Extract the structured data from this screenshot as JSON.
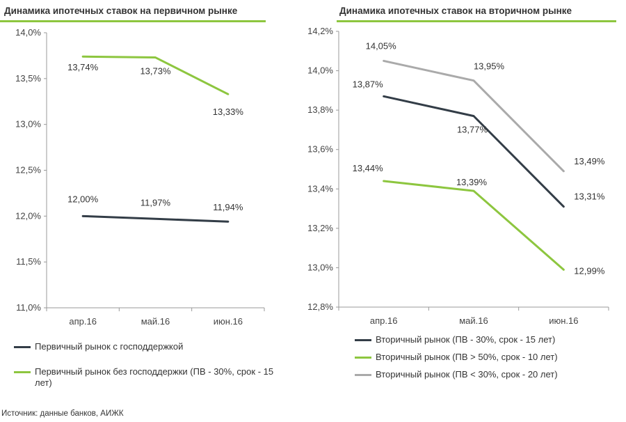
{
  "left_title": "Динамика ипотечных ставок на первичном рынке",
  "right_title": "Динамика ипотечных ставок на вторичном рынке",
  "source": "Источник: данные банков, АИЖК",
  "colors": {
    "accent": "#8dc63f",
    "dark": "#333d47",
    "green": "#8dc63f",
    "gray": "#aaaaaa"
  },
  "chart_data": [
    {
      "type": "line",
      "title": "Динамика ипотечных ставок на первичном рынке",
      "categories": [
        "апр.16",
        "май.16",
        "июн.16"
      ],
      "ylim": [
        11.0,
        14.0
      ],
      "yticks": [
        "11,0%",
        "11,5%",
        "12,0%",
        "12,5%",
        "13,0%",
        "13,5%",
        "14,0%"
      ],
      "grid": false,
      "legend_position": "bottom",
      "series": [
        {
          "name": "Первичный рынок с господдержкой",
          "color": "#333d47",
          "values": [
            12.0,
            11.97,
            11.94
          ],
          "labels": [
            "12,00%",
            "11,97%",
            "11,94%"
          ]
        },
        {
          "name": "Первичный рынок без господдержки (ПВ - 30%, срок - 15 лет)",
          "color": "#8dc63f",
          "values": [
            13.74,
            13.73,
            13.33
          ],
          "labels": [
            "13,74%",
            "13,73%",
            "13,33%"
          ]
        }
      ]
    },
    {
      "type": "line",
      "title": "Динамика ипотечных ставок на вторичном рынке",
      "categories": [
        "апр.16",
        "май.16",
        "июн.16"
      ],
      "ylim": [
        12.8,
        14.2
      ],
      "yticks": [
        "12,8%",
        "13,0%",
        "13,2%",
        "13,4%",
        "13,6%",
        "13,8%",
        "14,0%",
        "14,2%"
      ],
      "grid": false,
      "legend_position": "bottom",
      "series": [
        {
          "name": "Вторичный рынок (ПВ - 30%, срок - 15 лет)",
          "color": "#333d47",
          "values": [
            13.87,
            13.77,
            13.31
          ],
          "labels": [
            "13,87%",
            "13,77%",
            "13,31%"
          ]
        },
        {
          "name": "Вторичный рынок (ПВ > 50%, срок - 10 лет)",
          "color": "#8dc63f",
          "values": [
            13.44,
            13.39,
            12.99
          ],
          "labels": [
            "13,44%",
            "13,39%",
            "12,99%"
          ]
        },
        {
          "name": "Вторичный рынок (ПВ < 30%, срок - 20 лет)",
          "color": "#aaaaaa",
          "values": [
            14.05,
            13.95,
            13.49
          ],
          "labels": [
            "14,05%",
            "13,95%",
            "13,49%"
          ]
        }
      ]
    }
  ]
}
